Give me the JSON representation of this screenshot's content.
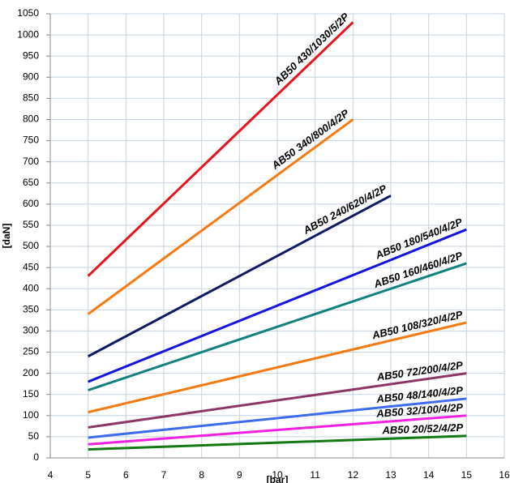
{
  "chart_data": {
    "type": "line",
    "x_label": "[bar]",
    "y_label": "[daN]",
    "xlim": [
      4,
      16
    ],
    "xticks": [
      4,
      5,
      6,
      7,
      8,
      9,
      10,
      11,
      12,
      13,
      14,
      15,
      16
    ],
    "ylim": [
      0,
      1050
    ],
    "yticks": [
      0,
      50,
      100,
      150,
      200,
      250,
      300,
      350,
      400,
      450,
      500,
      550,
      600,
      650,
      700,
      750,
      800,
      850,
      900,
      950,
      1000,
      1050
    ],
    "grid": true,
    "series": [
      {
        "name": "AB50 430/1030/5/2P",
        "color": "#e8141c",
        "x": [
          5,
          12
        ],
        "values": [
          430,
          1030
        ]
      },
      {
        "name": "AB50 340/800/4/2P",
        "color": "#f57a12",
        "x": [
          5,
          12
        ],
        "values": [
          340,
          800
        ]
      },
      {
        "name": "AB50 240/620/4/2P",
        "color": "#0f1a66",
        "x": [
          5,
          13
        ],
        "values": [
          240,
          620
        ]
      },
      {
        "name": "AB50 180/540/4/2P",
        "color": "#1414e0",
        "x": [
          5,
          15
        ],
        "values": [
          180,
          540
        ]
      },
      {
        "name": "AB50 160/460/4/2P",
        "color": "#118080",
        "x": [
          5,
          15
        ],
        "values": [
          160,
          460
        ]
      },
      {
        "name": "AB50 108/320/4/2P",
        "color": "#f57a12",
        "x": [
          5,
          15
        ],
        "values": [
          108,
          320
        ]
      },
      {
        "name": "AB50 72/200/4/2P",
        "color": "#8e3568",
        "x": [
          5,
          15
        ],
        "values": [
          72,
          200
        ]
      },
      {
        "name": "AB50 48/140/4/2P",
        "color": "#3b6cf0",
        "x": [
          5,
          15
        ],
        "values": [
          48,
          140
        ]
      },
      {
        "name": "AB50 32/100/4/2P",
        "color": "#f020e0",
        "x": [
          5,
          15
        ],
        "values": [
          32,
          100
        ]
      },
      {
        "name": "AB50 20/52/4/2P",
        "color": "#117a11",
        "x": [
          5,
          15
        ],
        "values": [
          20,
          52
        ]
      }
    ]
  }
}
